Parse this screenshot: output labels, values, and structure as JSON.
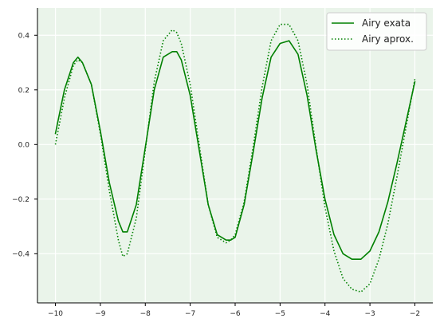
{
  "chart_data": {
    "type": "line",
    "title": "",
    "xlabel": "",
    "ylabel": "",
    "xlim": [
      -10.4,
      -1.6
    ],
    "ylim": [
      -0.58,
      0.5
    ],
    "grid": true,
    "legend_position": "top-right",
    "background_color": "#eaf4ea",
    "xticks": [
      -10,
      -9,
      -8,
      -7,
      -6,
      -5,
      -4,
      -3,
      -2
    ],
    "yticks": [
      -0.4,
      -0.2,
      0.0,
      0.2,
      0.4
    ],
    "xtick_labels": [
      "−10",
      "−9",
      "−8",
      "−7",
      "−6",
      "−5",
      "−4",
      "−3",
      "−2"
    ],
    "ytick_labels": [
      "−0.4",
      "−0.2",
      "0.0",
      "0.2",
      "0.4"
    ],
    "series": [
      {
        "name": "Airy exata",
        "style": "solid",
        "color": "#008000",
        "x": [
          -10.0,
          -9.8,
          -9.6,
          -9.5,
          -9.4,
          -9.2,
          -9.0,
          -8.8,
          -8.6,
          -8.5,
          -8.4,
          -8.2,
          -8.0,
          -7.8,
          -7.6,
          -7.4,
          -7.3,
          -7.2,
          -7.0,
          -6.8,
          -6.6,
          -6.4,
          -6.2,
          -6.1,
          -6.0,
          -5.8,
          -5.6,
          -5.4,
          -5.2,
          -5.0,
          -4.8,
          -4.6,
          -4.4,
          -4.2,
          -4.0,
          -3.8,
          -3.6,
          -3.4,
          -3.2,
          -3.0,
          -2.8,
          -2.6,
          -2.4,
          -2.2,
          -2.0
        ],
        "y": [
          0.04,
          0.2,
          0.3,
          0.32,
          0.3,
          0.22,
          0.05,
          -0.14,
          -0.28,
          -0.32,
          -0.32,
          -0.22,
          -0.01,
          0.2,
          0.32,
          0.34,
          0.34,
          0.31,
          0.18,
          -0.02,
          -0.22,
          -0.33,
          -0.35,
          -0.35,
          -0.34,
          -0.22,
          -0.03,
          0.17,
          0.32,
          0.37,
          0.38,
          0.33,
          0.18,
          -0.02,
          -0.2,
          -0.33,
          -0.4,
          -0.42,
          -0.42,
          -0.39,
          -0.32,
          -0.21,
          -0.07,
          0.08,
          0.23
        ]
      },
      {
        "name": "Airy aprox.",
        "style": "dotted",
        "color": "#008000",
        "x": [
          -10.0,
          -9.8,
          -9.6,
          -9.5,
          -9.4,
          -9.2,
          -9.0,
          -8.8,
          -8.6,
          -8.5,
          -8.4,
          -8.2,
          -8.0,
          -7.8,
          -7.6,
          -7.4,
          -7.3,
          -7.2,
          -7.0,
          -6.8,
          -6.6,
          -6.4,
          -6.2,
          -6.1,
          -6.0,
          -5.8,
          -5.6,
          -5.4,
          -5.2,
          -5.0,
          -4.8,
          -4.6,
          -4.4,
          -4.2,
          -4.0,
          -3.8,
          -3.6,
          -3.4,
          -3.2,
          -3.0,
          -2.8,
          -2.6,
          -2.4,
          -2.2,
          -2.0
        ],
        "y": [
          0.0,
          0.17,
          0.29,
          0.31,
          0.3,
          0.22,
          0.04,
          -0.17,
          -0.35,
          -0.41,
          -0.4,
          -0.27,
          -0.02,
          0.23,
          0.38,
          0.42,
          0.41,
          0.37,
          0.22,
          0.0,
          -0.22,
          -0.34,
          -0.36,
          -0.35,
          -0.33,
          -0.21,
          -0.01,
          0.21,
          0.38,
          0.44,
          0.44,
          0.38,
          0.22,
          -0.01,
          -0.23,
          -0.39,
          -0.49,
          -0.53,
          -0.54,
          -0.51,
          -0.42,
          -0.29,
          -0.12,
          0.06,
          0.24
        ]
      }
    ]
  }
}
